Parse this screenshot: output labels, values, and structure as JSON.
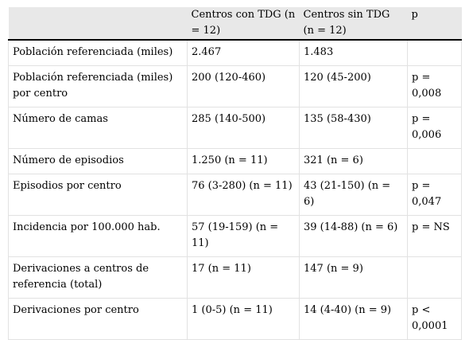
{
  "header": [
    "",
    "Centros con TDG (n = 12)",
    "Centros sin TDG (n = 12)",
    "p"
  ],
  "rows": [
    [
      "Población referenciada (miles)",
      "2.467",
      "1.483",
      ""
    ],
    [
      "Población referenciada (miles) por centro",
      "200 (120-460)",
      "120 (45-200)",
      "p = 0,008"
    ],
    [
      "Número de camas",
      "285 (140-500)",
      "135 (58-430)",
      "p = 0,006"
    ],
    [
      "Número de episodios",
      "1.250 (n = 11)",
      "321 (n = 6)",
      ""
    ],
    [
      "Episodios por centro",
      "76 (3-280) (n = 11)",
      "43 (21-150) (n = 6)",
      "p = 0,047"
    ],
    [
      "Incidencia por 100.000 hab.",
      "57 (19-159) (n = 11)",
      "39 (14-88) (n = 6)",
      "p = NS"
    ],
    [
      "Derivaciones a centros de referencia (total)",
      "17 (n = 11)",
      "147 (n = 9)",
      ""
    ],
    [
      "Derivaciones por centro",
      "1 (0-5) (n = 11)",
      "14 (4-40) (n = 9)",
      "p < 0,0001"
    ]
  ]
}
